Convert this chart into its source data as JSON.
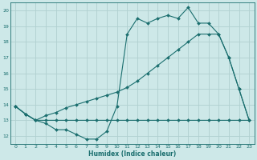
{
  "xlabel": "Humidex (Indice chaleur)",
  "background_color": "#cde8e8",
  "grid_color": "#b0d0d0",
  "line_color": "#1a6e6e",
  "xlim": [
    -0.5,
    23.5
  ],
  "ylim": [
    11.5,
    20.5
  ],
  "yticks": [
    12,
    13,
    14,
    15,
    16,
    17,
    18,
    19,
    20
  ],
  "xticks": [
    0,
    1,
    2,
    3,
    4,
    5,
    6,
    7,
    8,
    9,
    10,
    11,
    12,
    13,
    14,
    15,
    16,
    17,
    18,
    19,
    20,
    21,
    22,
    23
  ],
  "line1_x": [
    0,
    1,
    2,
    3,
    4,
    5,
    6,
    7,
    8,
    9,
    10,
    11,
    12,
    13,
    14,
    15,
    16,
    17,
    18,
    19,
    20,
    21,
    22,
    23
  ],
  "line1_y": [
    13.9,
    13.4,
    13.0,
    13.0,
    13.0,
    13.0,
    13.0,
    13.0,
    13.0,
    13.0,
    13.0,
    13.0,
    13.0,
    13.0,
    13.0,
    13.0,
    13.0,
    13.0,
    13.0,
    13.0,
    13.0,
    13.0,
    13.0,
    13.0
  ],
  "line2_x": [
    0,
    1,
    2,
    3,
    4,
    5,
    6,
    7,
    8,
    9,
    10,
    11,
    12,
    13,
    14,
    15,
    16,
    17,
    18,
    19,
    20,
    21,
    22,
    23
  ],
  "line2_y": [
    13.9,
    13.4,
    13.0,
    13.3,
    13.5,
    13.8,
    14.0,
    14.2,
    14.4,
    14.6,
    14.8,
    15.1,
    15.5,
    16.0,
    16.5,
    17.0,
    17.5,
    18.0,
    18.5,
    18.5,
    18.5,
    17.0,
    15.0,
    13.0
  ],
  "line3_x": [
    0,
    1,
    2,
    3,
    4,
    5,
    6,
    7,
    8,
    9,
    10,
    11,
    12,
    13,
    14,
    15,
    16,
    17,
    18,
    19,
    20,
    21,
    22,
    23
  ],
  "line3_y": [
    13.9,
    13.4,
    13.0,
    12.8,
    12.4,
    12.4,
    12.1,
    11.8,
    11.8,
    12.3,
    13.9,
    18.5,
    19.5,
    19.2,
    19.5,
    19.7,
    19.5,
    20.2,
    19.2,
    19.2,
    18.5,
    17.0,
    15.0,
    13.0
  ]
}
